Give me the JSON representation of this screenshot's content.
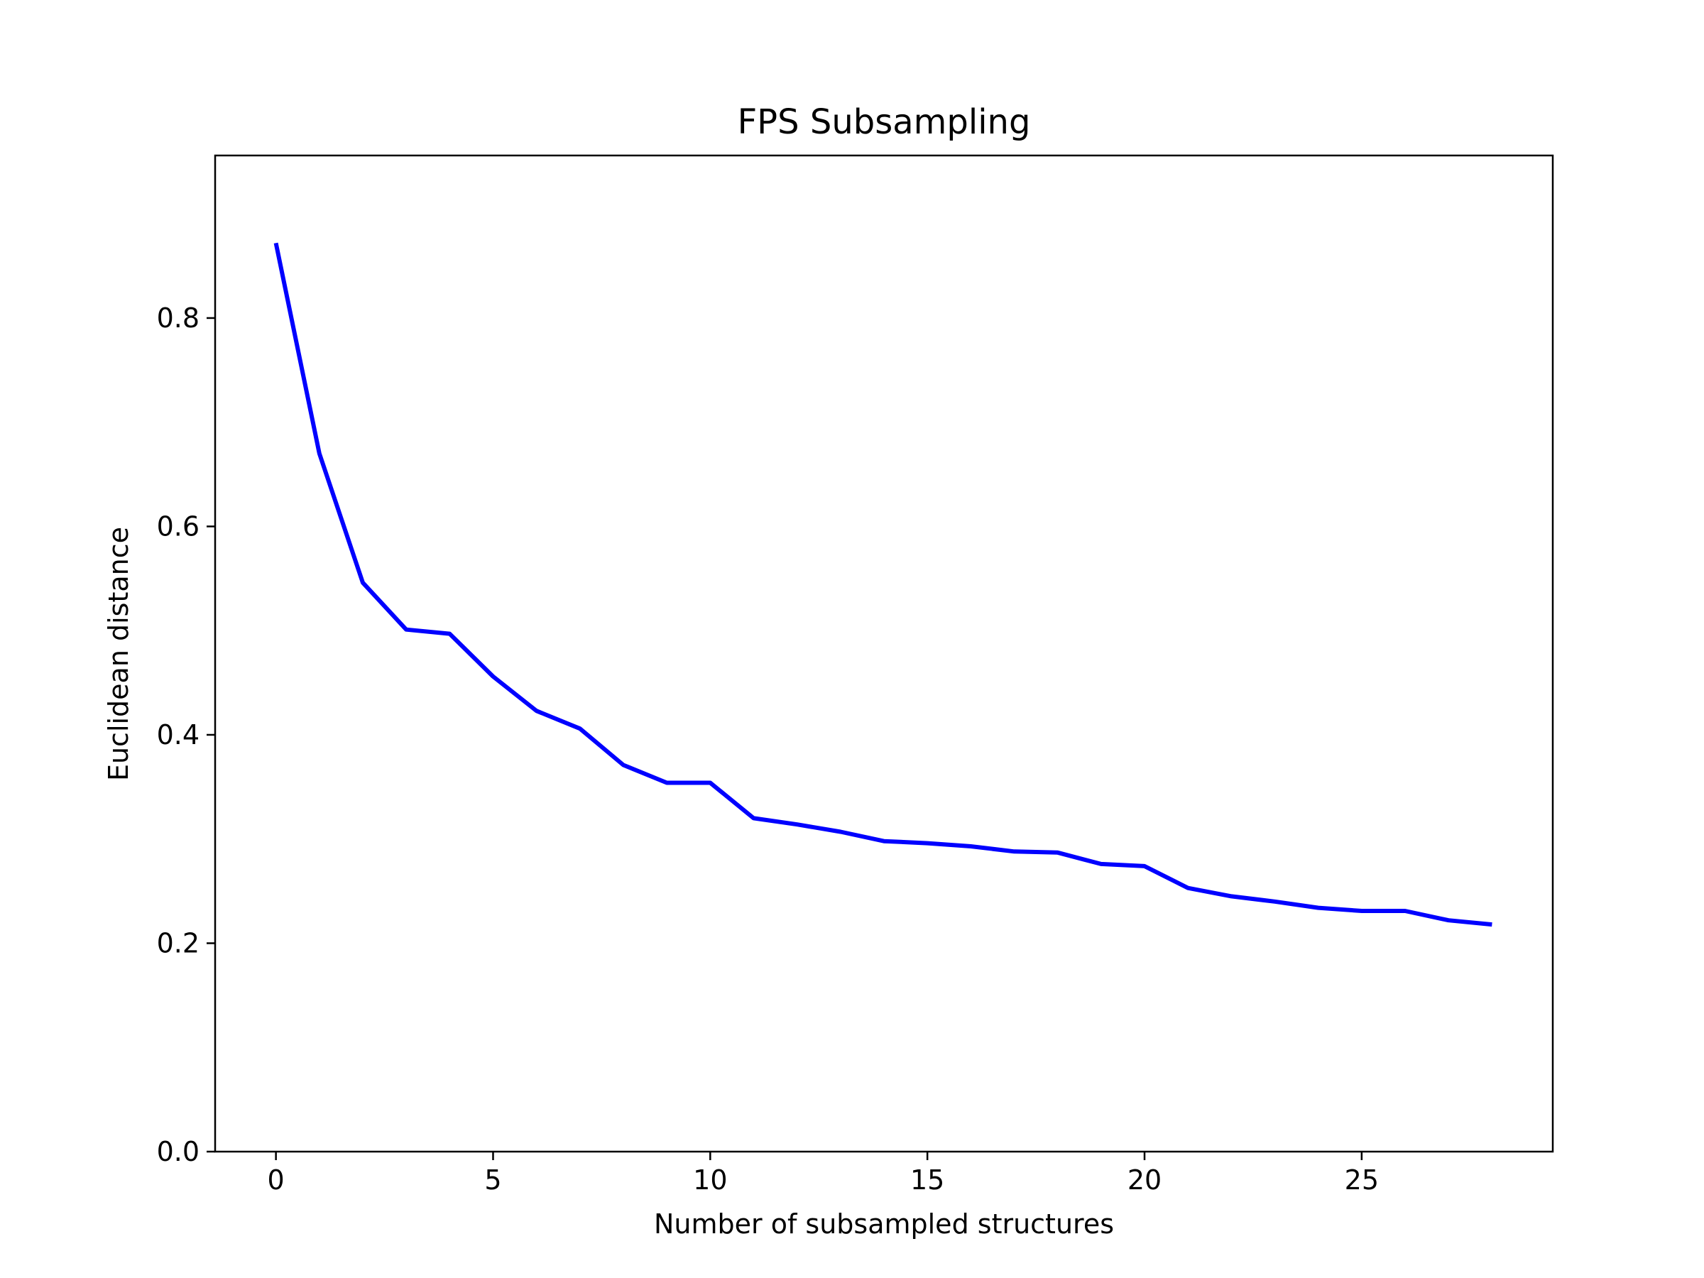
{
  "chart_data": {
    "type": "line",
    "title": "FPS Subsampling",
    "xlabel": "Number of subsampled structures",
    "ylabel": "Euclidean distance",
    "xlim": [
      -1.4,
      29.4
    ],
    "ylim": [
      0.0,
      0.956
    ],
    "x_ticks": [
      0,
      5,
      10,
      15,
      20,
      25
    ],
    "y_ticks": [
      0.0,
      0.2,
      0.4,
      0.6,
      0.8
    ],
    "x_tick_labels": [
      "0",
      "5",
      "10",
      "15",
      "20",
      "25"
    ],
    "y_tick_labels": [
      "0.0",
      "0.2",
      "0.4",
      "0.6",
      "0.8"
    ],
    "grid": false,
    "series": [
      {
        "color": "#0000ff",
        "x": [
          0,
          1,
          2,
          3,
          4,
          5,
          6,
          7,
          8,
          9,
          10,
          11,
          12,
          13,
          14,
          15,
          16,
          17,
          18,
          19,
          20,
          21,
          22,
          23,
          24,
          25,
          26,
          27,
          28
        ],
        "values": [
          0.872,
          0.67,
          0.546,
          0.501,
          0.497,
          0.456,
          0.423,
          0.406,
          0.371,
          0.354,
          0.354,
          0.32,
          0.314,
          0.307,
          0.298,
          0.296,
          0.293,
          0.288,
          0.287,
          0.276,
          0.274,
          0.253,
          0.245,
          0.24,
          0.234,
          0.231,
          0.231,
          0.222,
          0.218
        ]
      }
    ]
  }
}
